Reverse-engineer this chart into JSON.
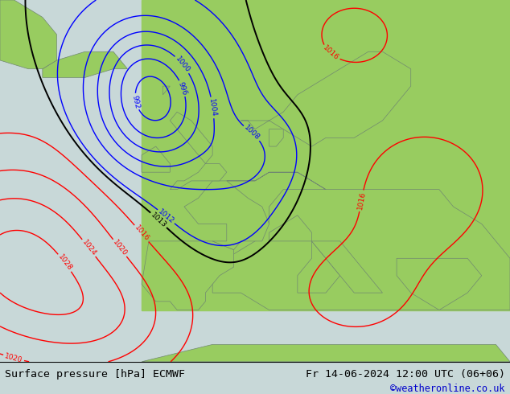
{
  "title_left": "Surface pressure [hPa] ECMWF",
  "title_right": "Fr 14-06-2024 12:00 UTC (06+06)",
  "credit": "©weatheronline.co.uk",
  "sea_color": "#c8d8d8",
  "land_color": "#98cc60",
  "land_edge_color": "#708870",
  "fig_width": 6.34,
  "fig_height": 4.9,
  "dpi": 100,
  "bottom_bar_height": 0.082,
  "bottom_bar_color": "white",
  "title_fontsize": 9.5,
  "credit_fontsize": 8.5,
  "credit_color": "#0000cc"
}
